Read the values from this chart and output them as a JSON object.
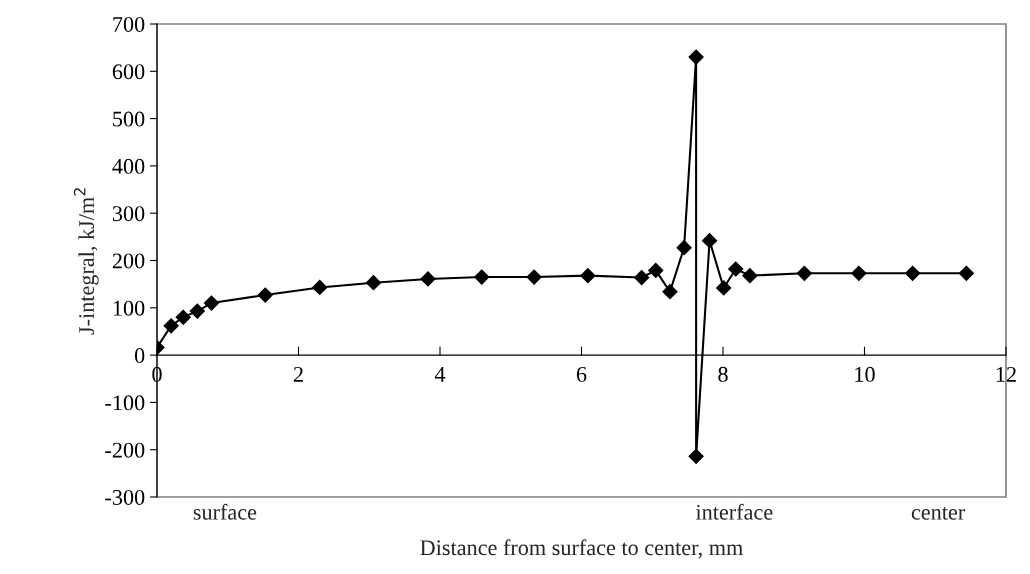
{
  "chart_data": {
    "type": "line",
    "xlabel": "Distance from surface to center, mm",
    "ylabel": "J-integral, kJ/m$^{2}$",
    "x": [
      0.0,
      0.2,
      0.37,
      0.57,
      0.77,
      1.53,
      2.3,
      3.06,
      3.83,
      4.59,
      5.33,
      6.09,
      6.85,
      7.05,
      7.25,
      7.45,
      7.62,
      7.62,
      7.81,
      8.01,
      8.18,
      8.38,
      9.15,
      9.92,
      10.68,
      11.44
    ],
    "series": [
      {
        "color": "#000000",
        "values": [
          16,
          62,
          80,
          93,
          110,
          127,
          143,
          153,
          161,
          165,
          165,
          168,
          164,
          179,
          134,
          227,
          630,
          -214,
          242,
          142,
          182,
          168,
          173,
          173,
          173,
          173
        ]
      }
    ],
    "xlim": [
      0,
      12
    ],
    "xticks": [
      0,
      2,
      4,
      6,
      8,
      10,
      12
    ],
    "ylim": [
      -300,
      700
    ],
    "yticks": [
      -300,
      -200,
      -100,
      0,
      100,
      200,
      300,
      400,
      500,
      600,
      700
    ],
    "marker": "diamond",
    "line_style": "solid",
    "grid": false,
    "annotations": [
      "surface",
      "interface",
      "center"
    ]
  }
}
